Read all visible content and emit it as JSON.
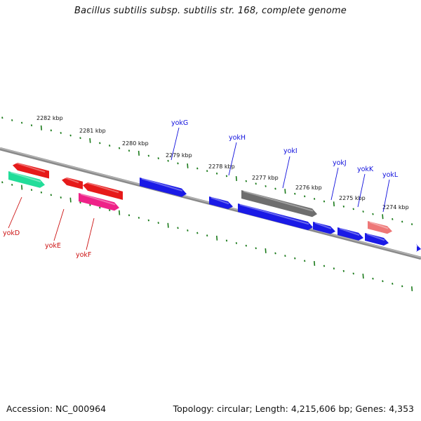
{
  "title": "Bacillus subtilis subsp. subtilis str. 168, complete genome",
  "footer": {
    "accession": "Accession: NC_000964",
    "summary": "Topology: circular; Length: 4,215,606 bp; Genes: 4,353"
  },
  "scale": {
    "unit": "kbp",
    "ticks": [
      "2282 kbp",
      "2281 kbp",
      "2280 kbp",
      "2279 kbp",
      "2278 kbp",
      "2277 kbp",
      "2276 kbp",
      "2275 kbp",
      "2274 kbp"
    ]
  },
  "colors": {
    "backbone": "#8a8a8a",
    "tick": "#1a7a1a",
    "forward_label": "#1010dd",
    "reverse_label": "#cc1111",
    "gene_blue": "#1a1ae6",
    "gene_red": "#e61a1a",
    "gene_gray": "#6e6e6e",
    "gene_pink": "#ee2288",
    "gene_green": "#22dd99",
    "gene_salmon": "#ee7777"
  },
  "gene_labels": {
    "yokD": "yokD",
    "yokE": "yokE",
    "yokF": "yokF",
    "yokG": "yokG",
    "yokH": "yokH",
    "yokI": "yokI",
    "yokJ": "yokJ",
    "yokK": "yokK",
    "yokL": "yokL"
  }
}
